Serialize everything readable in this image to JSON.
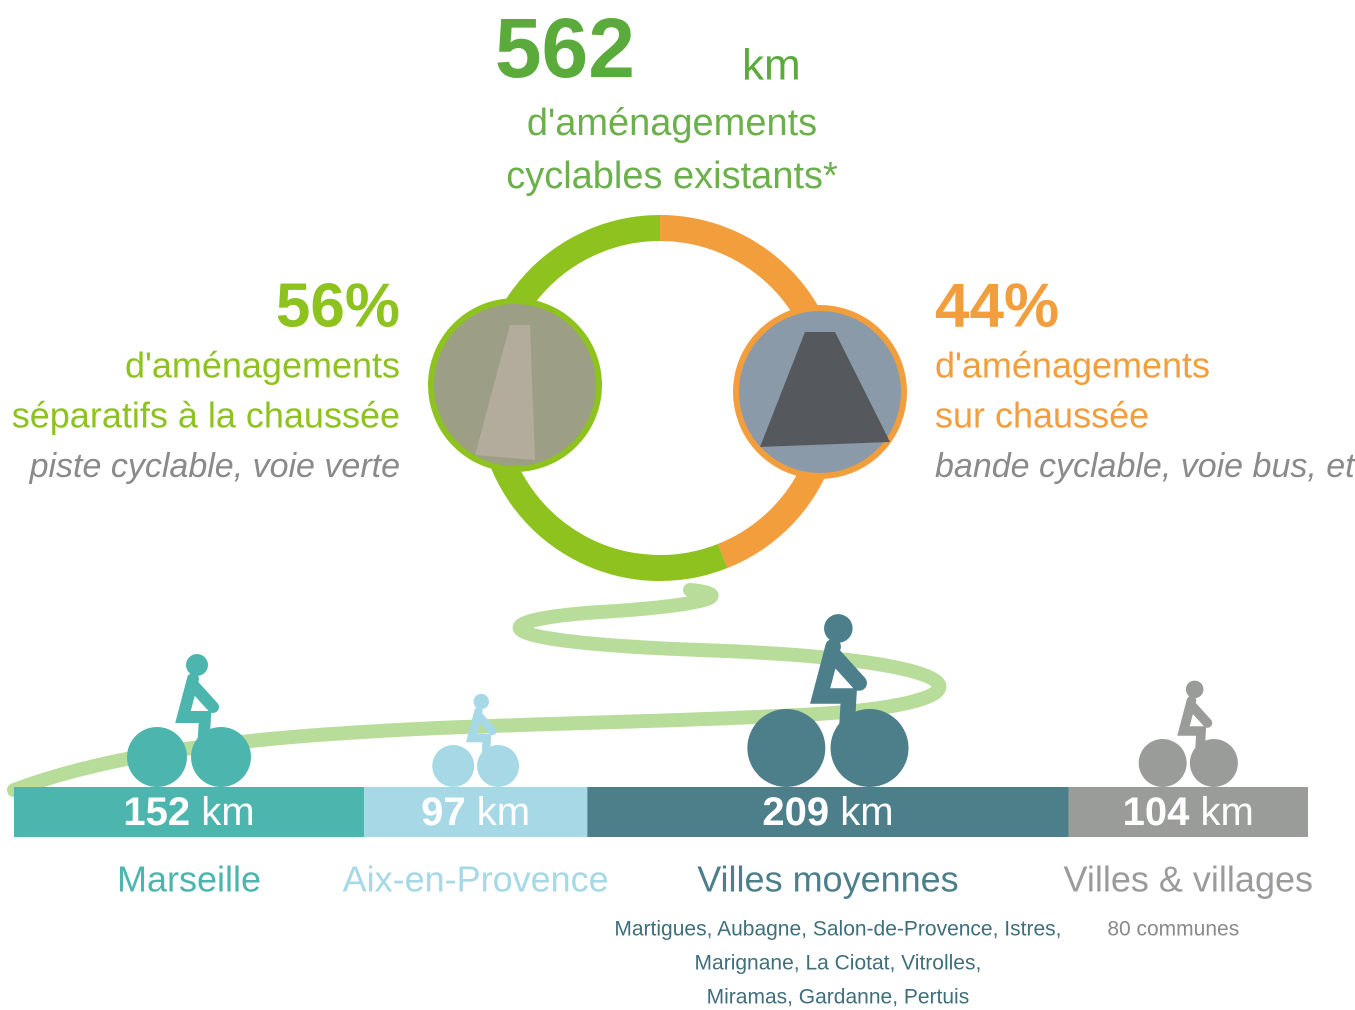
{
  "chart_data": [
    {
      "type": "donut",
      "total": 562,
      "unit": "km",
      "title": [
        "d'aménagements",
        "cyclables existants*"
      ],
      "values": [
        56,
        44
      ],
      "value_labels": [
        "56%",
        "44%"
      ],
      "colors": [
        "#8dc21f",
        "#f29e3d"
      ],
      "descriptions": [
        [
          "d'aménagements",
          "séparatifs à la chaussée"
        ],
        [
          "d'aménagements",
          "sur chaussée"
        ]
      ],
      "examples": [
        "piste cyclable, voie verte",
        "bande cyclable, voie bus, etc."
      ]
    },
    {
      "type": "stacked-bar",
      "unit": "km",
      "categories": [
        "Marseille",
        "Aix-en-Provence",
        "Villes moyennes",
        "Villes & villages"
      ],
      "values": [
        152,
        97,
        209,
        104
      ],
      "colors": [
        "#4cb5ae",
        "#a6d8e5",
        "#4d7f8b",
        "#9a9c9a"
      ],
      "notes": [
        null,
        null,
        [
          "Martigues, Aubagne, Salon-de-Provence, Istres,",
          "Marignane, La Ciotat, Vitrolles,",
          "Miramas, Gardanne, Pertuis"
        ],
        [
          "80 communes"
        ]
      ]
    }
  ]
}
